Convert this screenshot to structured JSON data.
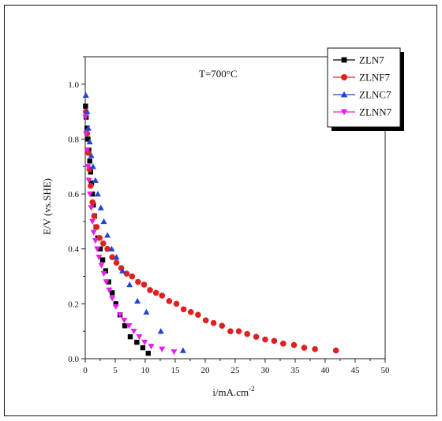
{
  "chart_data": {
    "type": "scatter",
    "xlabel": "i/mA.cm",
    "xlabel_sup": "-2",
    "ylabel": "E/V (vs.SHE)",
    "annotation": "T=700°C",
    "xlim": [
      0,
      50
    ],
    "ylim": [
      0,
      1.1
    ],
    "xticks": [
      0,
      5,
      10,
      15,
      20,
      25,
      30,
      35,
      40,
      45,
      50
    ],
    "yticks": [
      0.0,
      0.2,
      0.4,
      0.6,
      0.8,
      1.0
    ],
    "ytick_labels": [
      "0.0",
      "0.2",
      "0.4",
      "0.6",
      "0.8",
      "1.0"
    ],
    "legend_position": "top-right",
    "series": [
      {
        "name": "ZLN7",
        "marker": "square",
        "color": "#000000",
        "points": [
          [
            0.05,
            0.92
          ],
          [
            0.15,
            0.88
          ],
          [
            0.3,
            0.84
          ],
          [
            0.45,
            0.8
          ],
          [
            0.6,
            0.76
          ],
          [
            0.75,
            0.72
          ],
          [
            0.9,
            0.68
          ],
          [
            1.05,
            0.64
          ],
          [
            1.2,
            0.6
          ],
          [
            1.35,
            0.56
          ],
          [
            1.55,
            0.52
          ],
          [
            1.8,
            0.48
          ],
          [
            2.1,
            0.44
          ],
          [
            2.5,
            0.4
          ],
          [
            2.9,
            0.36
          ],
          [
            3.4,
            0.32
          ],
          [
            3.9,
            0.28
          ],
          [
            4.5,
            0.24
          ],
          [
            5.1,
            0.2
          ],
          [
            5.8,
            0.16
          ],
          [
            6.6,
            0.12
          ],
          [
            7.5,
            0.08
          ],
          [
            8.6,
            0.06
          ],
          [
            9.6,
            0.04
          ],
          [
            10.5,
            0.02
          ]
        ]
      },
      {
        "name": "ZLNF7",
        "marker": "circle",
        "color": "#e02020",
        "points": [
          [
            0.1,
            0.9
          ],
          [
            0.3,
            0.82
          ],
          [
            0.5,
            0.75
          ],
          [
            0.7,
            0.69
          ],
          [
            0.9,
            0.63
          ],
          [
            1.2,
            0.57
          ],
          [
            1.5,
            0.52
          ],
          [
            1.9,
            0.48
          ],
          [
            2.4,
            0.44
          ],
          [
            3.0,
            0.42
          ],
          [
            3.7,
            0.4
          ],
          [
            4.5,
            0.37
          ],
          [
            5.2,
            0.35
          ],
          [
            6.0,
            0.33
          ],
          [
            6.9,
            0.31
          ],
          [
            7.8,
            0.3
          ],
          [
            8.8,
            0.28
          ],
          [
            9.8,
            0.27
          ],
          [
            10.8,
            0.25
          ],
          [
            11.8,
            0.24
          ],
          [
            12.8,
            0.23
          ],
          [
            14.0,
            0.21
          ],
          [
            15.2,
            0.2
          ],
          [
            16.4,
            0.18
          ],
          [
            17.6,
            0.17
          ],
          [
            18.8,
            0.16
          ],
          [
            20.1,
            0.14
          ],
          [
            21.4,
            0.13
          ],
          [
            22.8,
            0.12
          ],
          [
            24.2,
            0.1
          ],
          [
            25.6,
            0.1
          ],
          [
            27.0,
            0.09
          ],
          [
            28.5,
            0.08
          ],
          [
            30.0,
            0.07
          ],
          [
            31.5,
            0.065
          ],
          [
            33.0,
            0.055
          ],
          [
            34.8,
            0.05
          ],
          [
            36.5,
            0.04
          ],
          [
            38.3,
            0.035
          ],
          [
            41.8,
            0.03
          ]
        ]
      },
      {
        "name": "ZLNC7",
        "marker": "triangle-up",
        "color": "#1f45d0",
        "points": [
          [
            0.1,
            0.96
          ],
          [
            0.3,
            0.9
          ],
          [
            0.5,
            0.84
          ],
          [
            0.75,
            0.79
          ],
          [
            1.0,
            0.74
          ],
          [
            1.3,
            0.7
          ],
          [
            1.7,
            0.65
          ],
          [
            2.1,
            0.6
          ],
          [
            2.6,
            0.55
          ],
          [
            3.1,
            0.5
          ],
          [
            3.7,
            0.45
          ],
          [
            4.4,
            0.4
          ],
          [
            5.2,
            0.37
          ],
          [
            6.2,
            0.32
          ],
          [
            7.4,
            0.27
          ],
          [
            8.7,
            0.21
          ],
          [
            10.2,
            0.17
          ],
          [
            12.6,
            0.1
          ],
          [
            16.3,
            0.03
          ]
        ]
      },
      {
        "name": "ZLNN7",
        "marker": "triangle-down",
        "color": "#e81ce8",
        "points": [
          [
            0.05,
            0.88
          ],
          [
            0.15,
            0.82
          ],
          [
            0.3,
            0.76
          ],
          [
            0.45,
            0.7
          ],
          [
            0.6,
            0.65
          ],
          [
            0.8,
            0.6
          ],
          [
            1.0,
            0.55
          ],
          [
            1.2,
            0.5
          ],
          [
            1.4,
            0.46
          ],
          [
            1.7,
            0.43
          ],
          [
            2.0,
            0.4
          ],
          [
            2.3,
            0.37
          ],
          [
            2.7,
            0.34
          ],
          [
            3.1,
            0.31
          ],
          [
            3.5,
            0.28
          ],
          [
            4.0,
            0.25
          ],
          [
            4.5,
            0.22
          ],
          [
            5.1,
            0.19
          ],
          [
            5.8,
            0.16
          ],
          [
            6.5,
            0.14
          ],
          [
            7.3,
            0.12
          ],
          [
            8.1,
            0.1
          ],
          [
            9.0,
            0.08
          ],
          [
            9.9,
            0.06
          ],
          [
            11.0,
            0.045
          ],
          [
            12.8,
            0.035
          ],
          [
            14.8,
            0.025
          ]
        ]
      }
    ]
  }
}
